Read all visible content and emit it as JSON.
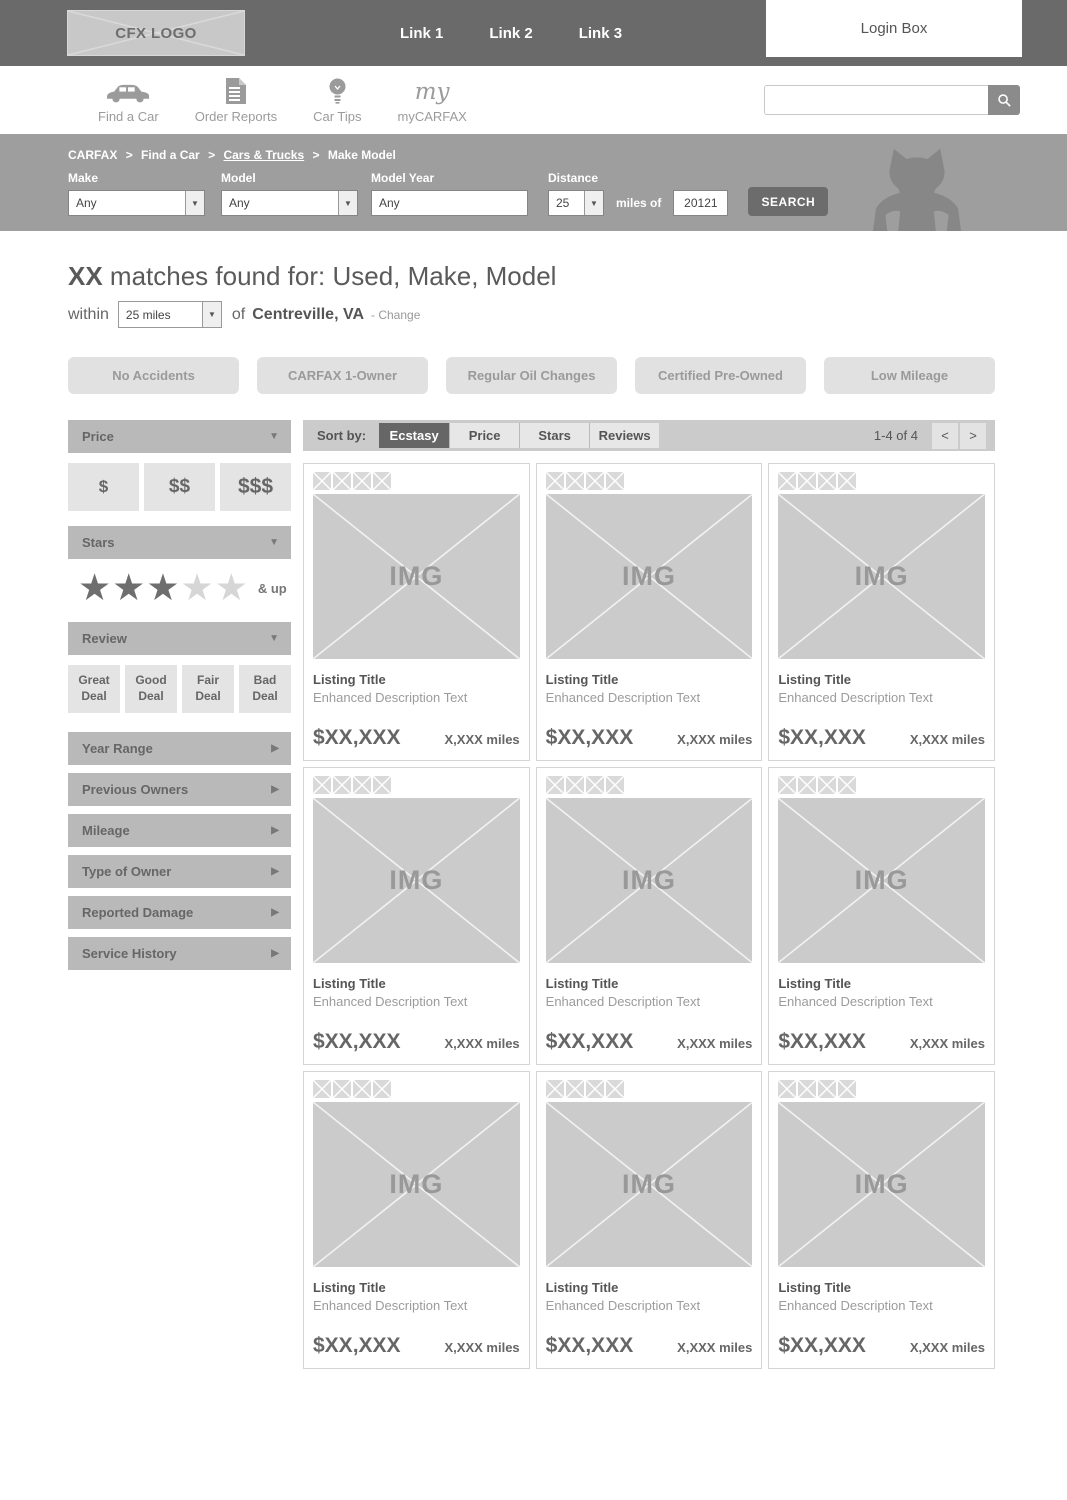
{
  "header": {
    "logo": "CFX LOGO",
    "links": [
      "Link 1",
      "Link 2",
      "Link 3"
    ],
    "login_label": "Login Box"
  },
  "nav": {
    "items": [
      {
        "icon": "car-icon",
        "label": "Find a Car"
      },
      {
        "icon": "report-icon",
        "label": "Order Reports"
      },
      {
        "icon": "lightbulb-icon",
        "label": "Car Tips"
      },
      {
        "icon": "my-script-icon",
        "label": "myCARFAX"
      }
    ],
    "search": {
      "value": "",
      "icon": "magnifier-icon"
    }
  },
  "breadcrumb": {
    "items": [
      "CARFAX",
      "Find a Car",
      "Cars & Trucks",
      "Make Model"
    ],
    "separator": ">"
  },
  "filter_bar": {
    "make": {
      "label": "Make",
      "value": "Any"
    },
    "model": {
      "label": "Model",
      "value": "Any"
    },
    "model_year": {
      "label": "Model Year",
      "value": "Any"
    },
    "distance": {
      "label": "Distance",
      "value": "25"
    },
    "miles_of": "miles of",
    "zip": "20121",
    "search_button": "SEARCH"
  },
  "results_header": {
    "count": "XX",
    "title_rest": " matches found for: Used, Make, Model",
    "within": "within",
    "radius": "25 miles",
    "of": "of",
    "location": "Centreville, VA",
    "change_link": "- Change"
  },
  "chips": [
    "No Accidents",
    "CARFAX 1-Owner",
    "Regular Oil Changes",
    "Certified Pre-Owned",
    "Low Mileage"
  ],
  "sidebar": {
    "price": {
      "label": "Price",
      "options": [
        "$",
        "$$",
        "$$$"
      ]
    },
    "stars": {
      "label": "Stars",
      "filled": 3,
      "total": 5,
      "suffix": "& up"
    },
    "review": {
      "label": "Review",
      "options": [
        "Great Deal",
        "Good Deal",
        "Fair Deal",
        "Bad Deal"
      ]
    },
    "collapsed_sections": [
      "Year Range",
      "Previous Owners",
      "Mileage",
      "Type of Owner",
      "Reported Damage",
      "Service History"
    ]
  },
  "sort_bar": {
    "label": "Sort by:",
    "options": [
      "Ecstasy",
      "Price",
      "Stars",
      "Reviews"
    ],
    "active_option": "Ecstasy",
    "pagination": {
      "range": "1-4 of 4",
      "prev": "<",
      "next": ">"
    }
  },
  "listings": {
    "count": 9,
    "thumbs_per_card": 4,
    "card": {
      "img_label": "IMG",
      "title": "Listing Title",
      "description": "Enhanced Description Text",
      "price": "$XX,XXX",
      "miles": "X,XXX miles"
    }
  },
  "glyphs": {
    "arrow_down": "▼",
    "arrow_right": "▶",
    "star": "★"
  },
  "colors": {
    "header_bg": "#6a6a6a",
    "bar_bg": "#9e9e9e",
    "panel_header_bg": "#b9b9b9",
    "active_sort_bg": "#666666",
    "chip_bg": "#e1e1e1",
    "option_bg": "#e4e4e4",
    "img_placeholder_bg": "#cbcbcb",
    "star_filled": "#6e6e6e",
    "star_empty": "#d6d6d6"
  }
}
